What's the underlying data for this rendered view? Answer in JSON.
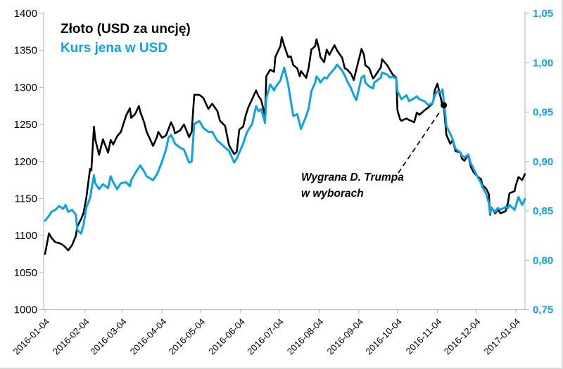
{
  "legend": {
    "gold_label": "Złoto (USD za uncję)",
    "yen_label": "Kurs jena w USD"
  },
  "annotation": {
    "line1": "Wygrana D. Trumpa",
    "line2": "w wyborach",
    "point_day": 310,
    "point_value": 1276
  },
  "colors": {
    "gold_line": "#000000",
    "yen_line": "#0aa3e3",
    "axis": "#bfbfbf",
    "tick_text": "#000000",
    "right_tick_text": "#0aa3e3"
  },
  "chart_data": {
    "type": "line",
    "title": "",
    "x_tick_labels": [
      "2016-01-04",
      "2016-02-04",
      "2016-03-04",
      "2016-04-04",
      "2016-05-04",
      "2016-06-04",
      "2016-07-04",
      "2016-08-04",
      "2016-09-04",
      "2016-10-04",
      "2016-11-04",
      "2016-12-04",
      "2017-01-04"
    ],
    "x_tick_days": [
      0,
      31,
      60,
      91,
      121,
      152,
      182,
      213,
      244,
      274,
      305,
      335,
      366
    ],
    "left_axis": {
      "min": 1000,
      "max": 1400,
      "step": 50,
      "tick_labels": [
        "1400",
        "1350",
        "1300",
        "1250",
        "1200",
        "1150",
        "1100",
        "1050",
        "1000"
      ],
      "tick_values": [
        1400,
        1350,
        1300,
        1250,
        1200,
        1150,
        1100,
        1050,
        1000
      ]
    },
    "right_axis": {
      "min": 0.75,
      "max": 1.05,
      "step": 0.05,
      "tick_labels": [
        "1,05",
        "1,00",
        "0,95",
        "0,90",
        "0,85",
        "0,80",
        "0,75"
      ],
      "tick_values": [
        1.05,
        1.0,
        0.95,
        0.9,
        0.85,
        0.8,
        0.75
      ]
    },
    "grid": false,
    "legend_position": "top-left-inside",
    "days": [
      0,
      3,
      5,
      8,
      11,
      14,
      16,
      18,
      21,
      24,
      25,
      28,
      30,
      32,
      35,
      36,
      38,
      39,
      42,
      45,
      49,
      51,
      53,
      56,
      59,
      63,
      66,
      67,
      70,
      73,
      74,
      77,
      79,
      84,
      87,
      88,
      91,
      94,
      96,
      98,
      100,
      101,
      105,
      108,
      112,
      114,
      116,
      120,
      123,
      127,
      130,
      134,
      136,
      140,
      143,
      147,
      149,
      151,
      154,
      156,
      158,
      161,
      164,
      166,
      168,
      171,
      172,
      175,
      178,
      179,
      183,
      184,
      186,
      189,
      191,
      193,
      196,
      198,
      199,
      203,
      205,
      207,
      210,
      211,
      213,
      214,
      217,
      219,
      221,
      225,
      227,
      231,
      233,
      235,
      238,
      240,
      242,
      246,
      248,
      249,
      252,
      255,
      256,
      261,
      262,
      266,
      268,
      270,
      273,
      274,
      276,
      277,
      281,
      283,
      287,
      289,
      291,
      295,
      298,
      301,
      302,
      303,
      305,
      308,
      309,
      310,
      311,
      312,
      315,
      317,
      319,
      323,
      324,
      326,
      329,
      331,
      333,
      336,
      339,
      340,
      343,
      345,
      346,
      347,
      350,
      352,
      354,
      358,
      360,
      361,
      365,
      366,
      368,
      371,
      373
    ],
    "series": [
      {
        "name": "Złoto (USD za uncję)",
        "axis": "left",
        "color": "#000000",
        "values": [
          1075,
          1103,
          1097,
          1091,
          1090,
          1087,
          1084,
          1080,
          1087,
          1100,
          1112,
          1122,
          1131,
          1150,
          1190,
          1188,
          1247,
          1230,
          1209,
          1230,
          1212,
          1229,
          1223,
          1234,
          1240,
          1262,
          1272,
          1259,
          1264,
          1275,
          1267,
          1253,
          1240,
          1221,
          1233,
          1240,
          1232,
          1235,
          1244,
          1253,
          1245,
          1238,
          1242,
          1250,
          1233,
          1240,
          1290,
          1290,
          1286,
          1271,
          1278,
          1268,
          1255,
          1248,
          1222,
          1210,
          1213,
          1243,
          1247,
          1262,
          1273,
          1284,
          1296,
          1288,
          1283,
          1262,
          1315,
          1324,
          1321,
          1341,
          1356,
          1368,
          1356,
          1341,
          1342,
          1330,
          1326,
          1315,
          1322,
          1313,
          1327,
          1351,
          1356,
          1365,
          1352,
          1341,
          1334,
          1351,
          1344,
          1357,
          1350,
          1340,
          1326,
          1324,
          1318,
          1310,
          1324,
          1352,
          1344,
          1330,
          1326,
          1312,
          1314,
          1327,
          1338,
          1330,
          1324,
          1318,
          1313,
          1269,
          1257,
          1255,
          1258,
          1256,
          1253,
          1266,
          1263,
          1269,
          1273,
          1278,
          1284,
          1296,
          1305,
          1283,
          1275,
          1276,
          1255,
          1236,
          1224,
          1229,
          1214,
          1212,
          1204,
          1201,
          1209,
          1193,
          1186,
          1180,
          1176,
          1168,
          1163,
          1156,
          1128,
          1138,
          1130,
          1135,
          1130,
          1133,
          1145,
          1157,
          1160,
          1168,
          1179,
          1175,
          1183
        ]
      },
      {
        "name": "Kurs jena w USD",
        "axis": "right",
        "color": "#0aa3e3",
        "values": [
          0.84,
          0.845,
          0.849,
          0.851,
          0.855,
          0.852,
          0.856,
          0.849,
          0.851,
          0.846,
          0.831,
          0.827,
          0.836,
          0.853,
          0.863,
          0.871,
          0.886,
          0.878,
          0.872,
          0.877,
          0.873,
          0.885,
          0.879,
          0.872,
          0.878,
          0.879,
          0.875,
          0.881,
          0.888,
          0.894,
          0.896,
          0.89,
          0.885,
          0.881,
          0.887,
          0.89,
          0.9,
          0.912,
          0.924,
          0.927,
          0.921,
          0.918,
          0.914,
          0.912,
          0.899,
          0.9,
          0.938,
          0.941,
          0.934,
          0.93,
          0.93,
          0.921,
          0.919,
          0.914,
          0.911,
          0.899,
          0.903,
          0.909,
          0.918,
          0.926,
          0.932,
          0.938,
          0.956,
          0.951,
          0.953,
          0.939,
          0.964,
          0.978,
          0.972,
          0.975,
          0.982,
          0.987,
          0.995,
          0.978,
          0.962,
          0.946,
          0.948,
          0.938,
          0.933,
          0.946,
          0.954,
          0.971,
          0.98,
          0.986,
          0.983,
          0.98,
          0.985,
          0.984,
          0.988,
          0.994,
          0.998,
          0.992,
          0.987,
          0.981,
          0.974,
          0.967,
          0.962,
          0.985,
          0.987,
          0.98,
          0.976,
          0.974,
          0.98,
          0.985,
          0.99,
          0.988,
          0.985,
          0.986,
          0.984,
          0.971,
          0.966,
          0.963,
          0.967,
          0.961,
          0.964,
          0.966,
          0.963,
          0.961,
          0.957,
          0.959,
          0.962,
          0.967,
          0.971,
          0.97,
          0.973,
          0.961,
          0.95,
          0.936,
          0.928,
          0.922,
          0.913,
          0.909,
          0.906,
          0.904,
          0.907,
          0.898,
          0.893,
          0.885,
          0.878,
          0.874,
          0.867,
          0.858,
          0.847,
          0.853,
          0.849,
          0.853,
          0.851,
          0.854,
          0.853,
          0.856,
          0.851,
          0.855,
          0.864,
          0.856,
          0.862
        ]
      }
    ]
  }
}
